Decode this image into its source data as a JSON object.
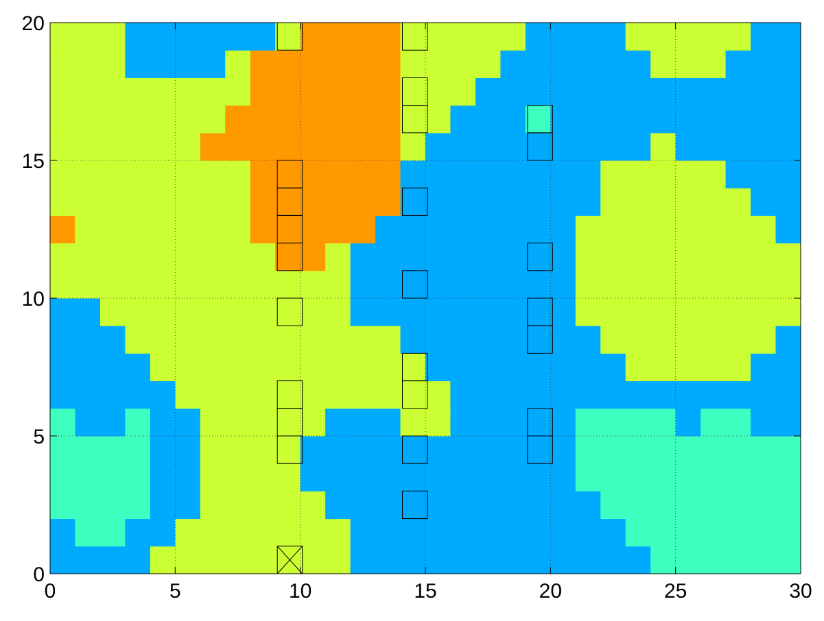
{
  "chart_data": {
    "type": "heatmap",
    "colors": [
      "#3dffc0",
      "#00aaff",
      "#ccff33",
      "#ff9900"
    ],
    "xlim": [
      0,
      30
    ],
    "ylim": [
      0,
      20
    ],
    "xticks": [
      0,
      5,
      10,
      15,
      20,
      25,
      30
    ],
    "yticks": [
      0,
      5,
      10,
      15,
      20
    ],
    "grid": true,
    "z": [
      [
        1,
        1,
        1,
        1,
        2,
        2,
        2,
        2,
        2,
        2,
        2,
        2,
        1,
        1,
        1,
        1,
        1,
        1,
        1,
        1,
        1,
        1,
        1,
        1,
        0,
        0,
        0,
        0,
        0,
        0
      ],
      [
        1,
        0,
        0,
        1,
        1,
        2,
        2,
        2,
        2,
        2,
        2,
        2,
        1,
        1,
        1,
        1,
        1,
        1,
        1,
        1,
        1,
        1,
        1,
        0,
        0,
        0,
        0,
        0,
        0,
        0
      ],
      [
        0,
        0,
        0,
        0,
        1,
        1,
        2,
        2,
        2,
        2,
        2,
        1,
        1,
        1,
        1,
        1,
        1,
        1,
        1,
        1,
        1,
        1,
        0,
        0,
        0,
        0,
        0,
        0,
        0,
        0
      ],
      [
        0,
        0,
        0,
        0,
        1,
        1,
        2,
        2,
        2,
        2,
        1,
        1,
        1,
        1,
        1,
        1,
        1,
        1,
        1,
        1,
        1,
        0,
        0,
        0,
        0,
        0,
        0,
        0,
        0,
        0
      ],
      [
        0,
        0,
        0,
        0,
        1,
        1,
        2,
        2,
        2,
        2,
        1,
        1,
        1,
        1,
        1,
        1,
        1,
        1,
        1,
        1,
        1,
        0,
        0,
        0,
        0,
        0,
        0,
        0,
        0,
        0
      ],
      [
        0,
        1,
        1,
        0,
        1,
        1,
        2,
        2,
        2,
        2,
        2,
        1,
        1,
        1,
        2,
        2,
        1,
        1,
        1,
        1,
        1,
        0,
        0,
        0,
        0,
        1,
        0,
        0,
        1,
        1
      ],
      [
        1,
        1,
        1,
        1,
        1,
        2,
        2,
        2,
        2,
        2,
        2,
        2,
        2,
        2,
        2,
        2,
        1,
        1,
        1,
        1,
        1,
        1,
        1,
        1,
        1,
        1,
        1,
        1,
        1,
        1
      ],
      [
        1,
        1,
        1,
        1,
        2,
        2,
        2,
        2,
        2,
        2,
        2,
        2,
        2,
        2,
        2,
        1,
        1,
        1,
        1,
        1,
        1,
        1,
        1,
        2,
        2,
        2,
        2,
        2,
        1,
        1
      ],
      [
        1,
        1,
        1,
        2,
        2,
        2,
        2,
        2,
        2,
        2,
        2,
        2,
        2,
        2,
        1,
        1,
        1,
        1,
        1,
        1,
        1,
        1,
        2,
        2,
        2,
        2,
        2,
        2,
        2,
        1
      ],
      [
        1,
        1,
        2,
        2,
        2,
        2,
        2,
        2,
        2,
        2,
        2,
        2,
        1,
        1,
        1,
        1,
        1,
        1,
        1,
        1,
        1,
        2,
        2,
        2,
        2,
        2,
        2,
        2,
        2,
        2
      ],
      [
        2,
        2,
        2,
        2,
        2,
        2,
        2,
        2,
        2,
        2,
        2,
        2,
        1,
        1,
        1,
        1,
        1,
        1,
        1,
        1,
        1,
        2,
        2,
        2,
        2,
        2,
        2,
        2,
        2,
        2
      ],
      [
        2,
        2,
        2,
        2,
        2,
        2,
        2,
        2,
        2,
        3,
        3,
        2,
        1,
        1,
        1,
        1,
        1,
        1,
        1,
        1,
        1,
        2,
        2,
        2,
        2,
        2,
        2,
        2,
        2,
        2
      ],
      [
        3,
        2,
        2,
        2,
        2,
        2,
        2,
        2,
        3,
        3,
        3,
        3,
        3,
        1,
        1,
        1,
        1,
        1,
        1,
        1,
        1,
        2,
        2,
        2,
        2,
        2,
        2,
        2,
        2,
        1
      ],
      [
        2,
        2,
        2,
        2,
        2,
        2,
        2,
        2,
        3,
        3,
        3,
        3,
        3,
        3,
        1,
        1,
        1,
        1,
        1,
        1,
        1,
        1,
        2,
        2,
        2,
        2,
        2,
        2,
        1,
        1
      ],
      [
        2,
        2,
        2,
        2,
        2,
        2,
        2,
        2,
        3,
        3,
        3,
        3,
        3,
        3,
        1,
        1,
        1,
        1,
        1,
        1,
        1,
        1,
        2,
        2,
        2,
        2,
        2,
        1,
        1,
        1
      ],
      [
        2,
        2,
        2,
        2,
        2,
        2,
        3,
        3,
        3,
        3,
        3,
        3,
        3,
        3,
        2,
        1,
        1,
        1,
        1,
        1,
        1,
        1,
        1,
        1,
        2,
        1,
        1,
        1,
        1,
        1
      ],
      [
        2,
        2,
        2,
        2,
        2,
        2,
        2,
        3,
        3,
        3,
        3,
        3,
        3,
        3,
        2,
        2,
        1,
        1,
        1,
        0,
        1,
        1,
        1,
        1,
        1,
        1,
        1,
        1,
        1,
        1
      ],
      [
        2,
        2,
        2,
        2,
        2,
        2,
        2,
        2,
        3,
        3,
        3,
        3,
        3,
        3,
        2,
        2,
        2,
        1,
        1,
        1,
        1,
        1,
        1,
        1,
        1,
        1,
        1,
        1,
        1,
        1
      ],
      [
        2,
        2,
        2,
        1,
        1,
        1,
        1,
        2,
        3,
        3,
        3,
        3,
        3,
        3,
        2,
        2,
        2,
        2,
        1,
        1,
        1,
        1,
        1,
        1,
        2,
        2,
        2,
        1,
        1,
        1
      ],
      [
        2,
        2,
        2,
        1,
        1,
        1,
        1,
        1,
        1,
        2,
        3,
        3,
        3,
        3,
        2,
        2,
        2,
        2,
        2,
        1,
        1,
        1,
        1,
        2,
        2,
        2,
        2,
        2,
        1,
        1
      ]
    ],
    "boxes": {
      "x": [
        9,
        9,
        9,
        9,
        9,
        9,
        9,
        9,
        9,
        14,
        14,
        14,
        14,
        14,
        14,
        14,
        14,
        14,
        19,
        19,
        19,
        19,
        19,
        19,
        19
      ],
      "y": [
        19,
        14,
        13,
        12,
        11,
        9,
        6,
        5,
        4,
        19,
        17,
        16,
        13,
        10,
        7,
        6,
        4,
        2,
        16,
        15,
        11,
        9,
        8,
        5,
        4
      ]
    },
    "crosses": {
      "x": [
        9
      ],
      "y": [
        0
      ]
    }
  }
}
